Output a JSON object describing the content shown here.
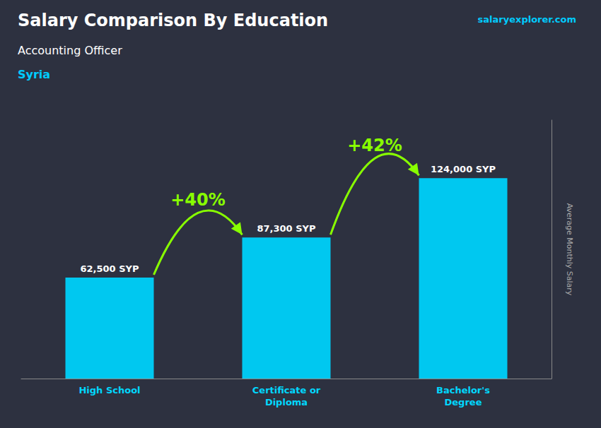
{
  "chart_data": {
    "type": "bar",
    "title": "Salary Comparison By Education",
    "subtitle": "Accounting Officer",
    "country": "Syria",
    "brand": "salaryexplorer.com",
    "y_label": "Average Monthly Salary",
    "categories": [
      "High School",
      "Certificate or\nDiploma",
      "Bachelor's\nDegree"
    ],
    "values": [
      62500,
      87300,
      124000
    ],
    "value_labels": [
      "62,500 SYP",
      "87,300 SYP",
      "124,000 SYP"
    ],
    "data_labels": true,
    "annotations": [
      "+40%",
      "+42%"
    ],
    "color": "#00c8f0",
    "ylim": [
      0,
      160000
    ],
    "tick_labels": "x",
    "grid": false
  }
}
